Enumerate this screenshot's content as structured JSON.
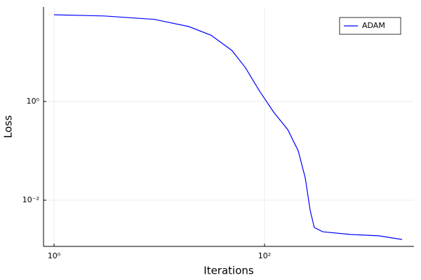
{
  "chart_data": {
    "type": "line",
    "xlabel": "Iterations",
    "ylabel": "Loss",
    "x": [
      1,
      3,
      9,
      19,
      31,
      49,
      66,
      90,
      122,
      166,
      209,
      244,
      271,
      297,
      357,
      661,
      1221,
      2027
    ],
    "series": [
      {
        "name": "ADAM",
        "color": "#0000ff",
        "values": [
          57,
          54,
          46,
          33,
          22,
          10.8,
          4.8,
          1.6,
          0.61,
          0.27,
          0.1,
          0.028,
          0.0063,
          0.0028,
          0.0023,
          0.00202,
          0.0019,
          0.0016
        ]
      }
    ],
    "xlim": [
      0.794,
      2630
    ],
    "ylim": [
      0.00116,
      82
    ],
    "xticks": [
      {
        "value": 1,
        "label": "10⁰"
      },
      {
        "value": 100,
        "label": "10²"
      }
    ],
    "yticks": [
      {
        "value": 0.01,
        "label": "10⁻²"
      },
      {
        "value": 1,
        "label": "10⁰"
      }
    ],
    "xscale": "log",
    "yscale": "log",
    "grid": true,
    "legend": "upper right"
  }
}
